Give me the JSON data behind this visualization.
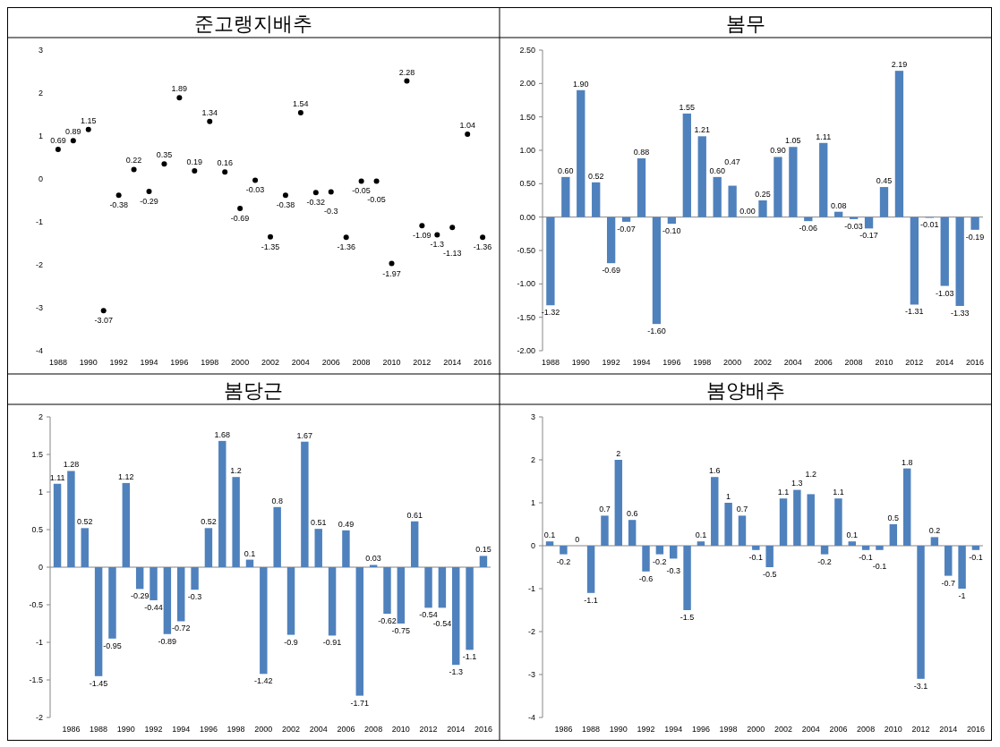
{
  "chart_data": [
    {
      "type": "scatter",
      "title": "준고랭지배추",
      "marker": "circle",
      "data_labels": true,
      "categories": [
        "1988",
        null,
        "1990",
        null,
        "1992",
        null,
        "1994",
        null,
        "1996",
        null,
        "1998",
        null,
        "2000",
        null,
        "2002",
        null,
        "2004",
        null,
        "2006",
        null,
        "2008",
        null,
        "2010",
        null,
        "2012",
        null,
        "2014",
        null,
        "2016"
      ],
      "series": [
        {
          "color": "#000000",
          "values": [
            0.69,
            0.89,
            1.15,
            -3.07,
            -0.38,
            0.22,
            -0.29,
            0.35,
            1.89,
            0.19,
            1.34,
            0.16,
            -0.69,
            -0.03,
            -1.35,
            -0.38,
            1.54,
            -0.32,
            -0.3,
            -1.36,
            -0.05,
            -0.05,
            -1.97,
            2.28,
            -1.09,
            -1.3,
            -1.13,
            1.04,
            -1.36
          ]
        }
      ],
      "ylim": [
        -4,
        3
      ],
      "yticks": [
        -4,
        -3,
        -2,
        -1,
        0,
        1,
        2,
        3
      ]
    },
    {
      "type": "bar",
      "title": "봄무",
      "categories": [
        "1988",
        null,
        "1990",
        null,
        "1992",
        null,
        "1994",
        null,
        "1996",
        null,
        "1998",
        null,
        "2000",
        null,
        "2002",
        null,
        "2004",
        null,
        "2006",
        null,
        "2008",
        null,
        "2010",
        null,
        "2012",
        null,
        "2014",
        null,
        "2016"
      ],
      "series": [
        {
          "color": "#4f81bd",
          "values": [
            -1.32,
            0.6,
            1.9,
            0.52,
            -0.69,
            -0.07,
            0.88,
            -1.6,
            -0.1,
            1.55,
            1.21,
            0.6,
            0.47,
            0.0,
            0.25,
            0.9,
            1.05,
            -0.06,
            1.11,
            0.08,
            -0.03,
            -0.17,
            0.45,
            2.19,
            -1.31,
            -0.01,
            -1.03,
            -1.33,
            -0.19
          ],
          "value_labels": [
            "-1.32",
            "0.60",
            "1.90",
            "0.52",
            "-0.69",
            "-0.07",
            "0.88",
            "-1.60",
            "-0.10",
            "1.55",
            "1.21",
            "0.60",
            "0.47",
            "0.00",
            "0.25",
            "0.90",
            "1.05",
            "-0.06",
            "1.11",
            "0.08",
            "-0.03",
            "-0.17",
            "0.45",
            "2.19",
            "-1.31",
            "-0.01",
            "-1.03",
            "-1.33",
            "-0.19"
          ]
        }
      ],
      "ylim": [
        -2,
        2.5
      ],
      "yticks": [
        {
          "value": -2,
          "label": "-2.00"
        },
        {
          "value": -1.5,
          "label": "-1.50"
        },
        {
          "value": -1,
          "label": "-1.00"
        },
        {
          "value": -0.5,
          "label": "-0.50"
        },
        {
          "value": 0,
          "label": "0.00"
        },
        {
          "value": 0.5,
          "label": "0.50"
        },
        {
          "value": 1,
          "label": "1.00"
        },
        {
          "value": 1.5,
          "label": "1.50"
        },
        {
          "value": 2,
          "label": "2.00"
        },
        {
          "value": 2.5,
          "label": "2.50"
        }
      ]
    },
    {
      "type": "bar",
      "title": "봄당근",
      "data_labels": true,
      "categories": [
        null,
        "1986",
        null,
        "1988",
        null,
        "1990",
        null,
        "1992",
        null,
        "1994",
        null,
        "1996",
        null,
        "1998",
        null,
        "2000",
        null,
        "2002",
        null,
        "2004",
        null,
        "2006",
        null,
        "2008",
        null,
        "2010",
        null,
        "2012",
        null,
        "2014",
        null,
        "2016"
      ],
      "series": [
        {
          "color": "#4f81bd",
          "values": [
            1.11,
            1.28,
            0.52,
            -1.45,
            -0.95,
            1.12,
            -0.29,
            -0.44,
            -0.89,
            -0.72,
            -0.3,
            0.52,
            1.68,
            1.2,
            0.1,
            -1.42,
            0.8,
            -0.9,
            1.67,
            0.51,
            -0.91,
            0.49,
            -1.71,
            0.03,
            -0.62,
            -0.75,
            0.61,
            -0.54,
            -0.54,
            -1.3,
            -1.1,
            0.15
          ]
        }
      ],
      "ylim": [
        -2,
        2
      ],
      "yticks": [
        -2,
        -1.5,
        -1,
        -0.5,
        0,
        0.5,
        1,
        1.5,
        2
      ]
    },
    {
      "type": "bar",
      "title": "봄양배추",
      "data_labels": true,
      "categories": [
        null,
        "1986",
        null,
        "1988",
        null,
        "1990",
        null,
        "1992",
        null,
        "1994",
        null,
        "1996",
        null,
        "1998",
        null,
        "2000",
        null,
        "2002",
        null,
        "2004",
        null,
        "2006",
        null,
        "2008",
        null,
        "2010",
        null,
        "2012",
        null,
        "2014",
        null,
        "2016"
      ],
      "series": [
        {
          "color": "#4f81bd",
          "values": [
            0.1,
            -0.2,
            0,
            -1.1,
            0.7,
            2,
            0.6,
            -0.6,
            -0.2,
            -0.3,
            -1.5,
            0.1,
            1.6,
            1,
            0.7,
            -0.1,
            -0.5,
            1.1,
            1.3,
            1.2,
            -0.2,
            1.1,
            0.1,
            -0.1,
            -0.1,
            0.5,
            1.8,
            -3.1,
            0.2,
            -0.7,
            -1,
            -0.1
          ]
        }
      ],
      "ylim": [
        -4,
        3
      ],
      "yticks": [
        -4,
        -3,
        -2,
        -1,
        0,
        1,
        2,
        3
      ]
    }
  ]
}
